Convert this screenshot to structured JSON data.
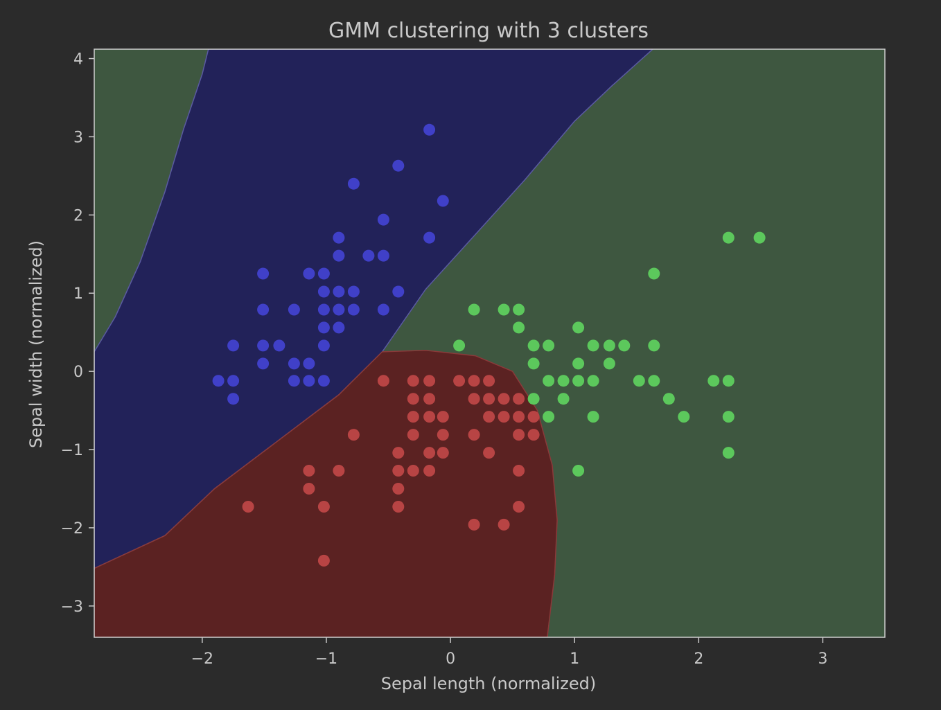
{
  "chart_data": {
    "type": "scatter",
    "title": "GMM clustering with 3 clusters",
    "xlabel": "Sepal length (normalized)",
    "ylabel": "Sepal width (normalized)",
    "xlim": [
      -2.87,
      3.5
    ],
    "ylim": [
      -3.4,
      4.12
    ],
    "xticks": [
      -2,
      -1,
      0,
      1,
      2,
      3
    ],
    "yticks": [
      -3,
      -2,
      -1,
      0,
      1,
      2,
      3,
      4
    ],
    "grid": false,
    "background_regions": {
      "colors": {
        "cluster_0": "#222259",
        "cluster_1": "#5b2222",
        "cluster_2": "#3e5740"
      },
      "description_note": "decision regions of fitted GMM"
    },
    "series": [
      {
        "color": "#4040c8",
        "points": [
          [
            -0.17,
            3.09
          ],
          [
            -0.42,
            2.63
          ],
          [
            -0.78,
            2.4
          ],
          [
            -0.06,
            2.18
          ],
          [
            -0.54,
            1.94
          ],
          [
            -0.17,
            1.71
          ],
          [
            -0.9,
            1.71
          ],
          [
            -0.66,
            1.48
          ],
          [
            -0.54,
            1.48
          ],
          [
            -0.9,
            1.48
          ],
          [
            -1.51,
            1.25
          ],
          [
            -1.14,
            1.25
          ],
          [
            -1.02,
            1.25
          ],
          [
            -1.02,
            1.02
          ],
          [
            -0.9,
            1.02
          ],
          [
            -0.78,
            1.02
          ],
          [
            -0.42,
            1.02
          ],
          [
            -1.51,
            0.79
          ],
          [
            -1.26,
            0.79
          ],
          [
            -1.02,
            0.79
          ],
          [
            -0.9,
            0.79
          ],
          [
            -0.78,
            0.79
          ],
          [
            -0.54,
            0.79
          ],
          [
            -1.02,
            0.56
          ],
          [
            -0.9,
            0.56
          ],
          [
            -1.75,
            0.33
          ],
          [
            -1.51,
            0.33
          ],
          [
            -1.38,
            0.33
          ],
          [
            -1.02,
            0.33
          ],
          [
            -1.51,
            0.1
          ],
          [
            -1.26,
            0.1
          ],
          [
            -1.14,
            0.1
          ],
          [
            -1.87,
            -0.12
          ],
          [
            -1.75,
            -0.12
          ],
          [
            -1.26,
            -0.12
          ],
          [
            -1.14,
            -0.12
          ],
          [
            -1.02,
            -0.12
          ],
          [
            -1.75,
            -0.35
          ]
        ]
      },
      {
        "color": "#b84444",
        "points": [
          [
            -0.54,
            -0.12
          ],
          [
            -0.3,
            -0.12
          ],
          [
            -0.17,
            -0.12
          ],
          [
            0.07,
            -0.12
          ],
          [
            0.19,
            -0.12
          ],
          [
            0.31,
            -0.12
          ],
          [
            -0.3,
            -0.35
          ],
          [
            -0.17,
            -0.35
          ],
          [
            0.19,
            -0.35
          ],
          [
            0.31,
            -0.35
          ],
          [
            0.43,
            -0.35
          ],
          [
            0.55,
            -0.35
          ],
          [
            -0.3,
            -0.58
          ],
          [
            -0.17,
            -0.58
          ],
          [
            -0.06,
            -0.58
          ],
          [
            0.31,
            -0.58
          ],
          [
            0.43,
            -0.58
          ],
          [
            0.55,
            -0.58
          ],
          [
            0.67,
            -0.58
          ],
          [
            -0.78,
            -0.81
          ],
          [
            -0.3,
            -0.81
          ],
          [
            -0.06,
            -0.81
          ],
          [
            0.19,
            -0.81
          ],
          [
            0.55,
            -0.81
          ],
          [
            0.67,
            -0.81
          ],
          [
            -0.42,
            -1.04
          ],
          [
            -0.17,
            -1.04
          ],
          [
            -0.06,
            -1.04
          ],
          [
            0.31,
            -1.04
          ],
          [
            -1.14,
            -1.27
          ],
          [
            -0.9,
            -1.27
          ],
          [
            -0.42,
            -1.27
          ],
          [
            -0.3,
            -1.27
          ],
          [
            -0.17,
            -1.27
          ],
          [
            0.55,
            -1.27
          ],
          [
            -1.14,
            -1.5
          ],
          [
            -0.42,
            -1.5
          ],
          [
            -1.63,
            -1.73
          ],
          [
            -1.02,
            -1.73
          ],
          [
            -0.42,
            -1.73
          ],
          [
            0.55,
            -1.73
          ],
          [
            0.19,
            -1.96
          ],
          [
            0.43,
            -1.96
          ],
          [
            -1.02,
            -2.42
          ]
        ]
      },
      {
        "color": "#5cc85c",
        "points": [
          [
            2.24,
            1.71
          ],
          [
            2.49,
            1.71
          ],
          [
            1.64,
            1.25
          ],
          [
            0.19,
            0.79
          ],
          [
            0.43,
            0.79
          ],
          [
            0.55,
            0.79
          ],
          [
            0.55,
            0.56
          ],
          [
            1.03,
            0.56
          ],
          [
            0.07,
            0.33
          ],
          [
            0.67,
            0.33
          ],
          [
            0.79,
            0.33
          ],
          [
            1.15,
            0.33
          ],
          [
            1.28,
            0.33
          ],
          [
            1.4,
            0.33
          ],
          [
            1.64,
            0.33
          ],
          [
            0.67,
            0.1
          ],
          [
            1.03,
            0.1
          ],
          [
            1.28,
            0.1
          ],
          [
            0.79,
            -0.12
          ],
          [
            0.91,
            -0.12
          ],
          [
            1.03,
            -0.12
          ],
          [
            1.15,
            -0.12
          ],
          [
            1.52,
            -0.12
          ],
          [
            1.64,
            -0.12
          ],
          [
            2.12,
            -0.12
          ],
          [
            2.24,
            -0.12
          ],
          [
            0.67,
            -0.35
          ],
          [
            0.91,
            -0.35
          ],
          [
            1.76,
            -0.35
          ],
          [
            0.79,
            -0.58
          ],
          [
            1.15,
            -0.58
          ],
          [
            1.88,
            -0.58
          ],
          [
            2.24,
            -0.58
          ],
          [
            2.24,
            -1.04
          ],
          [
            1.03,
            -1.27
          ]
        ]
      }
    ]
  }
}
